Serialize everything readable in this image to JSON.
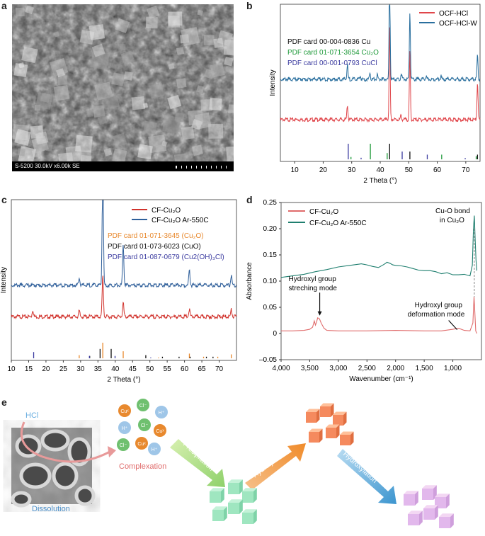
{
  "panels": {
    "a": "a",
    "b": "b",
    "c": "c",
    "d": "d",
    "e": "e"
  },
  "sem": {
    "caption": "S-5200 30.0kV x6.00k SE"
  },
  "chart_data": [
    {
      "id": "b",
      "type": "line",
      "xlabel": "2 Theta (°)",
      "ylabel": "Intensity",
      "xlim": [
        5,
        75
      ],
      "xticks": [
        10,
        20,
        30,
        40,
        50,
        60,
        70
      ],
      "series": [
        {
          "name": "OCF-HCl",
          "color": "#e0464b",
          "baseline": 0.28,
          "peaks": [
            {
              "x": 28.5,
              "h": 0.1
            },
            {
              "x": 43.3,
              "h": 0.62
            },
            {
              "x": 47.3,
              "h": 0.03
            },
            {
              "x": 50.4,
              "h": 0.45
            },
            {
              "x": 74.1,
              "h": 0.25
            }
          ]
        },
        {
          "name": "OCF-HCl-W",
          "color": "#2a6f9e",
          "baseline": 0.55,
          "peaks": [
            {
              "x": 28.5,
              "h": 0.1
            },
            {
              "x": 33.0,
              "h": 0.02
            },
            {
              "x": 36.4,
              "h": 0.05
            },
            {
              "x": 39.0,
              "h": 0.03
            },
            {
              "x": 43.3,
              "h": 0.68
            },
            {
              "x": 47.4,
              "h": 0.04
            },
            {
              "x": 50.4,
              "h": 0.45
            },
            {
              "x": 56.1,
              "h": 0.02
            },
            {
              "x": 61.3,
              "h": 0.02
            },
            {
              "x": 74.1,
              "h": 0.16
            }
          ]
        }
      ],
      "refcards": [
        {
          "label": "PDF card 00-004-0836 Cu",
          "color": "#111111",
          "lines": [
            {
              "x": 43.3,
              "h": 1.0
            },
            {
              "x": 50.4,
              "h": 0.5
            },
            {
              "x": 74.1,
              "h": 0.3
            }
          ]
        },
        {
          "label": "PDF card 01-071-3654 Cu₂O",
          "color": "#1f9a3a",
          "lines": [
            {
              "x": 29.6,
              "h": 0.15
            },
            {
              "x": 36.4,
              "h": 1.0
            },
            {
              "x": 42.3,
              "h": 0.4
            },
            {
              "x": 61.4,
              "h": 0.3
            },
            {
              "x": 73.5,
              "h": 0.2
            }
          ]
        },
        {
          "label": "PDF card 00-001-0793 CuCl",
          "color": "#3c3ca0",
          "lines": [
            {
              "x": 28.5,
              "h": 1.0
            },
            {
              "x": 33.0,
              "h": 0.1
            },
            {
              "x": 47.4,
              "h": 0.5
            },
            {
              "x": 56.2,
              "h": 0.3
            },
            {
              "x": 69.5,
              "h": 0.08
            }
          ]
        }
      ]
    },
    {
      "id": "c",
      "type": "line",
      "xlabel": "2 Theta (°)",
      "ylabel": "Intensity",
      "xlim": [
        10,
        75
      ],
      "xticks": [
        10,
        15,
        20,
        25,
        30,
        35,
        40,
        45,
        50,
        55,
        60,
        65,
        70
      ],
      "series": [
        {
          "name": "CF-Cu₂O",
          "color": "#d1322c",
          "baseline": 0.32,
          "peaks": [
            {
              "x": 16.2,
              "h": 0.05
            },
            {
              "x": 29.6,
              "h": 0.04
            },
            {
              "x": 36.4,
              "h": 0.3
            },
            {
              "x": 42.3,
              "h": 0.1
            },
            {
              "x": 61.4,
              "h": 0.05
            },
            {
              "x": 73.5,
              "h": 0.05
            }
          ]
        },
        {
          "name": "CF-Cu₂O Ar-550C",
          "color": "#2f5f9a",
          "baseline": 0.55,
          "peaks": [
            {
              "x": 29.6,
              "h": 0.06
            },
            {
              "x": 36.4,
              "h": 0.88
            },
            {
              "x": 42.3,
              "h": 0.3
            },
            {
              "x": 61.4,
              "h": 0.11
            },
            {
              "x": 73.5,
              "h": 0.07
            }
          ]
        }
      ],
      "refcards": [
        {
          "label": "PDF card 01-071-3645 (Cu₂O)",
          "color": "#e8892e",
          "lines": [
            {
              "x": 29.6,
              "h": 0.2
            },
            {
              "x": 36.4,
              "h": 1.0
            },
            {
              "x": 42.3,
              "h": 0.45
            },
            {
              "x": 52.5,
              "h": 0.05
            },
            {
              "x": 61.4,
              "h": 0.3
            },
            {
              "x": 65.5,
              "h": 0.1
            },
            {
              "x": 69.6,
              "h": 0.1
            },
            {
              "x": 73.5,
              "h": 0.25
            }
          ]
        },
        {
          "label": "PDF card 01-073-6023 (CuO)",
          "color": "#111111",
          "lines": [
            {
              "x": 32.5,
              "h": 0.15
            },
            {
              "x": 35.5,
              "h": 0.6
            },
            {
              "x": 38.7,
              "h": 0.6
            },
            {
              "x": 48.7,
              "h": 0.2
            },
            {
              "x": 53.5,
              "h": 0.1
            },
            {
              "x": 58.3,
              "h": 0.1
            },
            {
              "x": 61.5,
              "h": 0.1
            },
            {
              "x": 66.2,
              "h": 0.1
            },
            {
              "x": 68.1,
              "h": 0.1
            }
          ]
        },
        {
          "label": "PDF card 01-087-0679 (Cu2(OH)₃Cl)",
          "color": "#3c3ca0",
          "lines": [
            {
              "x": 16.2,
              "h": 0.4
            },
            {
              "x": 32.3,
              "h": 0.15
            },
            {
              "x": 39.7,
              "h": 0.15
            },
            {
              "x": 50.0,
              "h": 0.05
            }
          ]
        }
      ]
    },
    {
      "id": "d",
      "type": "line",
      "xlabel": "Wavenumber (cm⁻¹)",
      "ylabel": "Absorbance",
      "xlim": [
        4000,
        500
      ],
      "xticks": [
        4000,
        3500,
        3000,
        2500,
        2000,
        1500,
        1000
      ],
      "xticklabels": [
        "4,000",
        "3,500",
        "3,000",
        "2,500",
        "2,000",
        "1,500",
        "1,000"
      ],
      "ylim": [
        -0.05,
        0.25
      ],
      "yticks": [
        -0.05,
        0,
        0.05,
        0.1,
        0.15,
        0.2,
        0.25
      ],
      "yticklabels": [
        "–0.05",
        "0",
        "0.05",
        "0.10",
        "0.15",
        "0.20",
        "0.25"
      ],
      "series": [
        {
          "name": "CF-Cu₂O",
          "color": "#e06b6b",
          "points": [
            [
              4000,
              0.005
            ],
            [
              3800,
              0.005
            ],
            [
              3600,
              0.006
            ],
            [
              3500,
              0.008
            ],
            [
              3450,
              0.012
            ],
            [
              3420,
              0.024
            ],
            [
              3400,
              0.016
            ],
            [
              3380,
              0.022
            ],
            [
              3360,
              0.03
            ],
            [
              3330,
              0.028
            ],
            [
              3300,
              0.02
            ],
            [
              3250,
              0.01
            ],
            [
              3200,
              0.006
            ],
            [
              3000,
              0.005
            ],
            [
              2500,
              0.005
            ],
            [
              2000,
              0.006
            ],
            [
              1500,
              0.005
            ],
            [
              1200,
              0.005
            ],
            [
              1000,
              0.008
            ],
            [
              900,
              0.01
            ],
            [
              800,
              0.006
            ],
            [
              700,
              0.005
            ],
            [
              650,
              0.02
            ],
            [
              630,
              0.07
            ],
            [
              620,
              0.05
            ],
            [
              600,
              0.005
            ],
            [
              580,
              0.0
            ]
          ]
        },
        {
          "name": "CF-Cu₂O Ar-550C",
          "color": "#1f7f6f",
          "points": [
            [
              4000,
              0.107
            ],
            [
              3800,
              0.11
            ],
            [
              3600,
              0.113
            ],
            [
              3400,
              0.118
            ],
            [
              3200,
              0.122
            ],
            [
              3000,
              0.127
            ],
            [
              2800,
              0.13
            ],
            [
              2600,
              0.133
            ],
            [
              2500,
              0.131
            ],
            [
              2400,
              0.128
            ],
            [
              2300,
              0.126
            ],
            [
              2200,
              0.132
            ],
            [
              2150,
              0.136
            ],
            [
              2100,
              0.134
            ],
            [
              2050,
              0.131
            ],
            [
              2000,
              0.13
            ],
            [
              1900,
              0.129
            ],
            [
              1800,
              0.127
            ],
            [
              1700,
              0.124
            ],
            [
              1600,
              0.121
            ],
            [
              1500,
              0.12
            ],
            [
              1400,
              0.12
            ],
            [
              1300,
              0.118
            ],
            [
              1200,
              0.114
            ],
            [
              1100,
              0.116
            ],
            [
              1000,
              0.112
            ],
            [
              900,
              0.112
            ],
            [
              800,
              0.113
            ],
            [
              700,
              0.11
            ],
            [
              660,
              0.13
            ],
            [
              640,
              0.2
            ],
            [
              625,
              0.225
            ],
            [
              610,
              0.18
            ],
            [
              595,
              0.14
            ],
            [
              580,
              0.12
            ]
          ]
        }
      ],
      "annotations": [
        {
          "text": "Hydroxyl group",
          "text2": "streching mode",
          "x": 3350,
          "y": 0.03
        },
        {
          "text": "Hydroxyl group",
          "text2": "deformation mode",
          "x": 900,
          "y": 0.01
        },
        {
          "text": "Cu-O bond",
          "text2": "in Cu₂O",
          "x": 625,
          "y": 0.225
        }
      ]
    }
  ],
  "schematic": {
    "hcl": "HCl",
    "dissolution": "Dissolution",
    "complexation": "Complexation",
    "precipitation": "Precipitation",
    "hydrolysis": "Hydrolysis",
    "hydroxylation": "Hydroxylation",
    "ions": [
      {
        "t": "Cuˣ",
        "c": "#e8892e"
      },
      {
        "t": "Cl⁻",
        "c": "#6fc06f"
      },
      {
        "t": "H⁺",
        "c": "#9fc6e8"
      },
      {
        "t": "H⁺",
        "c": "#9fc6e8"
      },
      {
        "t": "Cl⁻",
        "c": "#6fc06f"
      },
      {
        "t": "Cuˣ",
        "c": "#e8892e"
      },
      {
        "t": "Cl⁻",
        "c": "#6fc06f"
      },
      {
        "t": "Cuˣ",
        "c": "#e8892e"
      },
      {
        "t": "H⁺",
        "c": "#9fc6e8"
      }
    ]
  }
}
